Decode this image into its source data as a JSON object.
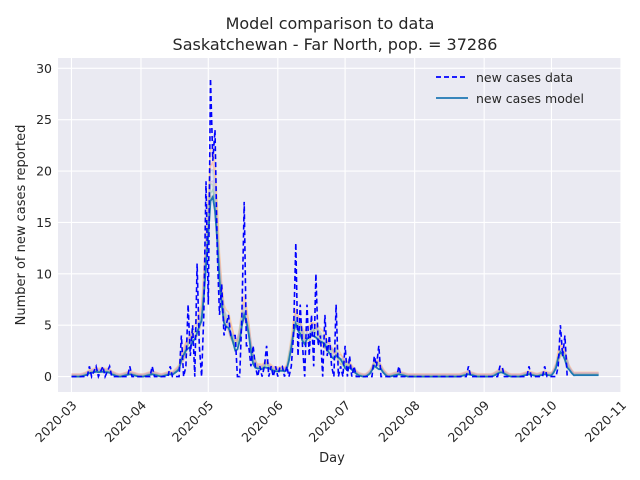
{
  "chart_data": {
    "type": "line",
    "title": "Model comparison to data",
    "subtitle": "Saskatchewan - Far North, pop. = 37286",
    "xlabel": "Day",
    "ylabel": "Number of new cases reported",
    "x_domain": [
      "2020-02-24",
      "2020-11-01"
    ],
    "ylim": [
      -1.5,
      31
    ],
    "x_ticks": [
      "2020-03",
      "2020-04",
      "2020-05",
      "2020-06",
      "2020-07",
      "2020-08",
      "2020-09",
      "2020-10",
      "2020-11"
    ],
    "y_ticks": [
      0,
      5,
      10,
      15,
      20,
      25,
      30
    ],
    "grid": true,
    "legend_position": "top-right",
    "legend": [
      {
        "label": "new cases data",
        "style": "dashed",
        "color": "#0000ff"
      },
      {
        "label": "new cases model",
        "style": "solid",
        "color": "#1f77b4"
      }
    ],
    "data_series": {
      "name": "new cases data",
      "color": "#0000ff",
      "points": [
        [
          "2020-03-01",
          0
        ],
        [
          "2020-03-08",
          0
        ],
        [
          "2020-03-09",
          1
        ],
        [
          "2020-03-10",
          0
        ],
        [
          "2020-03-12",
          1
        ],
        [
          "2020-03-13",
          0
        ],
        [
          "2020-03-15",
          1
        ],
        [
          "2020-03-16",
          0
        ],
        [
          "2020-03-18",
          1
        ],
        [
          "2020-03-19",
          0
        ],
        [
          "2020-03-26",
          0
        ],
        [
          "2020-03-27",
          1
        ],
        [
          "2020-03-28",
          0
        ],
        [
          "2020-04-05",
          0
        ],
        [
          "2020-04-06",
          1
        ],
        [
          "2020-04-07",
          0
        ],
        [
          "2020-04-13",
          0
        ],
        [
          "2020-04-14",
          1
        ],
        [
          "2020-04-15",
          0
        ],
        [
          "2020-04-18",
          0
        ],
        [
          "2020-04-19",
          4
        ],
        [
          "2020-04-20",
          0
        ],
        [
          "2020-04-21",
          1
        ],
        [
          "2020-04-22",
          7
        ],
        [
          "2020-04-23",
          2
        ],
        [
          "2020-04-24",
          5
        ],
        [
          "2020-04-25",
          0
        ],
        [
          "2020-04-26",
          11
        ],
        [
          "2020-04-27",
          3
        ],
        [
          "2020-04-28",
          0
        ],
        [
          "2020-04-29",
          6
        ],
        [
          "2020-04-30",
          19
        ],
        [
          "2020-05-01",
          7
        ],
        [
          "2020-05-02",
          29
        ],
        [
          "2020-05-03",
          21
        ],
        [
          "2020-05-04",
          24
        ],
        [
          "2020-05-05",
          12
        ],
        [
          "2020-05-06",
          6
        ],
        [
          "2020-05-07",
          9
        ],
        [
          "2020-05-08",
          4
        ],
        [
          "2020-05-09",
          5
        ],
        [
          "2020-05-10",
          6
        ],
        [
          "2020-05-11",
          4
        ],
        [
          "2020-05-12",
          4
        ],
        [
          "2020-05-13",
          4
        ],
        [
          "2020-05-14",
          0
        ],
        [
          "2020-05-15",
          0
        ],
        [
          "2020-05-16",
          6
        ],
        [
          "2020-05-17",
          17
        ],
        [
          "2020-05-18",
          3
        ],
        [
          "2020-05-19",
          3
        ],
        [
          "2020-05-20",
          1
        ],
        [
          "2020-05-21",
          3
        ],
        [
          "2020-05-22",
          1
        ],
        [
          "2020-05-23",
          0
        ],
        [
          "2020-05-24",
          1
        ],
        [
          "2020-05-25",
          0
        ],
        [
          "2020-05-26",
          1
        ],
        [
          "2020-05-27",
          3
        ],
        [
          "2020-05-28",
          0
        ],
        [
          "2020-05-29",
          1
        ],
        [
          "2020-05-30",
          0
        ],
        [
          "2020-05-31",
          1
        ],
        [
          "2020-06-01",
          0
        ],
        [
          "2020-06-02",
          1
        ],
        [
          "2020-06-03",
          1
        ],
        [
          "2020-06-04",
          0
        ],
        [
          "2020-06-05",
          1
        ],
        [
          "2020-06-06",
          0
        ],
        [
          "2020-06-07",
          1
        ],
        [
          "2020-06-08",
          4
        ],
        [
          "2020-06-09",
          13
        ],
        [
          "2020-06-10",
          2
        ],
        [
          "2020-06-11",
          7
        ],
        [
          "2020-06-12",
          3
        ],
        [
          "2020-06-13",
          0
        ],
        [
          "2020-06-14",
          7
        ],
        [
          "2020-06-15",
          2
        ],
        [
          "2020-06-16",
          6
        ],
        [
          "2020-06-17",
          1
        ],
        [
          "2020-06-18",
          10
        ],
        [
          "2020-06-19",
          3
        ],
        [
          "2020-06-20",
          4
        ],
        [
          "2020-06-21",
          0
        ],
        [
          "2020-06-22",
          6
        ],
        [
          "2020-06-23",
          2
        ],
        [
          "2020-06-24",
          4
        ],
        [
          "2020-06-25",
          1
        ],
        [
          "2020-06-26",
          0
        ],
        [
          "2020-06-27",
          7
        ],
        [
          "2020-06-28",
          0
        ],
        [
          "2020-06-29",
          1
        ],
        [
          "2020-06-30",
          0
        ],
        [
          "2020-07-01",
          3
        ],
        [
          "2020-07-02",
          0
        ],
        [
          "2020-07-03",
          2
        ],
        [
          "2020-07-04",
          0
        ],
        [
          "2020-07-05",
          1
        ],
        [
          "2020-07-06",
          0
        ],
        [
          "2020-07-13",
          0
        ],
        [
          "2020-07-14",
          2
        ],
        [
          "2020-07-15",
          1
        ],
        [
          "2020-07-16",
          3
        ],
        [
          "2020-07-17",
          0
        ],
        [
          "2020-07-24",
          0
        ],
        [
          "2020-07-25",
          1
        ],
        [
          "2020-07-26",
          0
        ],
        [
          "2020-08-24",
          0
        ],
        [
          "2020-08-25",
          1
        ],
        [
          "2020-08-26",
          0
        ],
        [
          "2020-09-07",
          0
        ],
        [
          "2020-09-08",
          1
        ],
        [
          "2020-09-09",
          1
        ],
        [
          "2020-09-10",
          0
        ],
        [
          "2020-09-20",
          0
        ],
        [
          "2020-09-21",
          1
        ],
        [
          "2020-09-22",
          0
        ],
        [
          "2020-09-27",
          0
        ],
        [
          "2020-09-28",
          1
        ],
        [
          "2020-09-29",
          0
        ],
        [
          "2020-10-03",
          0
        ],
        [
          "2020-10-04",
          1
        ],
        [
          "2020-10-05",
          5
        ],
        [
          "2020-10-06",
          2
        ],
        [
          "2020-10-07",
          4
        ],
        [
          "2020-10-08",
          0
        ]
      ]
    },
    "model_series": [
      {
        "color": "#ff9f7f",
        "peak_scale": 1.08,
        "offset": 0.18,
        "width": 1.4
      },
      {
        "color": "#ffbf7f",
        "peak_scale": 1.14,
        "offset": 0.26,
        "width": 1.5
      },
      {
        "color": "#9fbfdf",
        "peak_scale": 1.03,
        "offset": 0.12,
        "width": 1.6
      },
      {
        "color": "#9fdf9f",
        "peak_scale": 0.97,
        "offset": 0.08,
        "width": 1.6
      },
      {
        "color": "#d9a08d",
        "peak_scale": 0.92,
        "offset": 0.14,
        "width": 1.5
      },
      {
        "color": "#c5a3e0",
        "peak_scale": 1.0,
        "offset": 0.22,
        "width": 1.4
      },
      {
        "color": "#87c1a6",
        "peak_scale": 0.95,
        "offset": 0.06,
        "width": 1.5
      },
      {
        "color": "#1f77b4",
        "peak_scale": 0.9,
        "offset": 0.0,
        "width": 1.8
      }
    ]
  }
}
